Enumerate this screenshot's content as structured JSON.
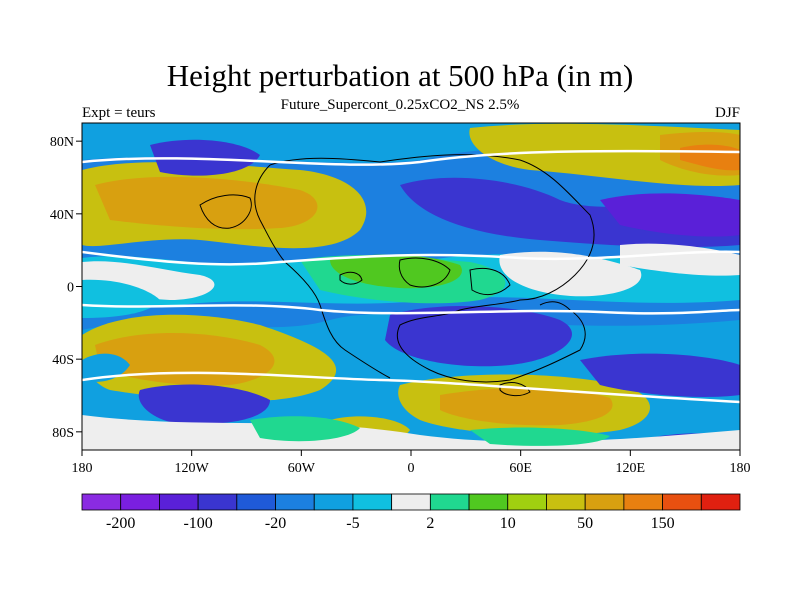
{
  "title": "Height perturbation at 500 hPa (in m)",
  "subtitle": "Future_Supercont_0.25xCO2_NS 2.5%",
  "left_label": "Expt = teurs",
  "right_label": "DJF",
  "map": {
    "lon_ticks": [
      "180",
      "120W",
      "60W",
      "0",
      "60E",
      "120E",
      "180"
    ],
    "lat_ticks": [
      "80N",
      "40N",
      "0",
      "40S",
      "80S"
    ],
    "lon_range": [
      -180,
      180
    ],
    "lat_range": [
      -90,
      90
    ],
    "projection": "cylindrical equidistant"
  },
  "colorbar": {
    "colors": [
      "#8a2be2",
      "#7a1fe0",
      "#5a20d8",
      "#3a35d0",
      "#1f5ad8",
      "#1c80e0",
      "#10a0e0",
      "#10c0e0",
      "#eeeeee",
      "#20d890",
      "#50c820",
      "#a0d010",
      "#c8c010",
      "#d8a010",
      "#e88010",
      "#e85010",
      "#e02010"
    ],
    "labels": [
      "-200",
      "-100",
      "-20",
      "-5",
      "2",
      "10",
      "50",
      "150"
    ],
    "label_boundary_index": [
      1,
      3,
      5,
      7,
      9,
      11,
      13,
      15
    ]
  }
}
